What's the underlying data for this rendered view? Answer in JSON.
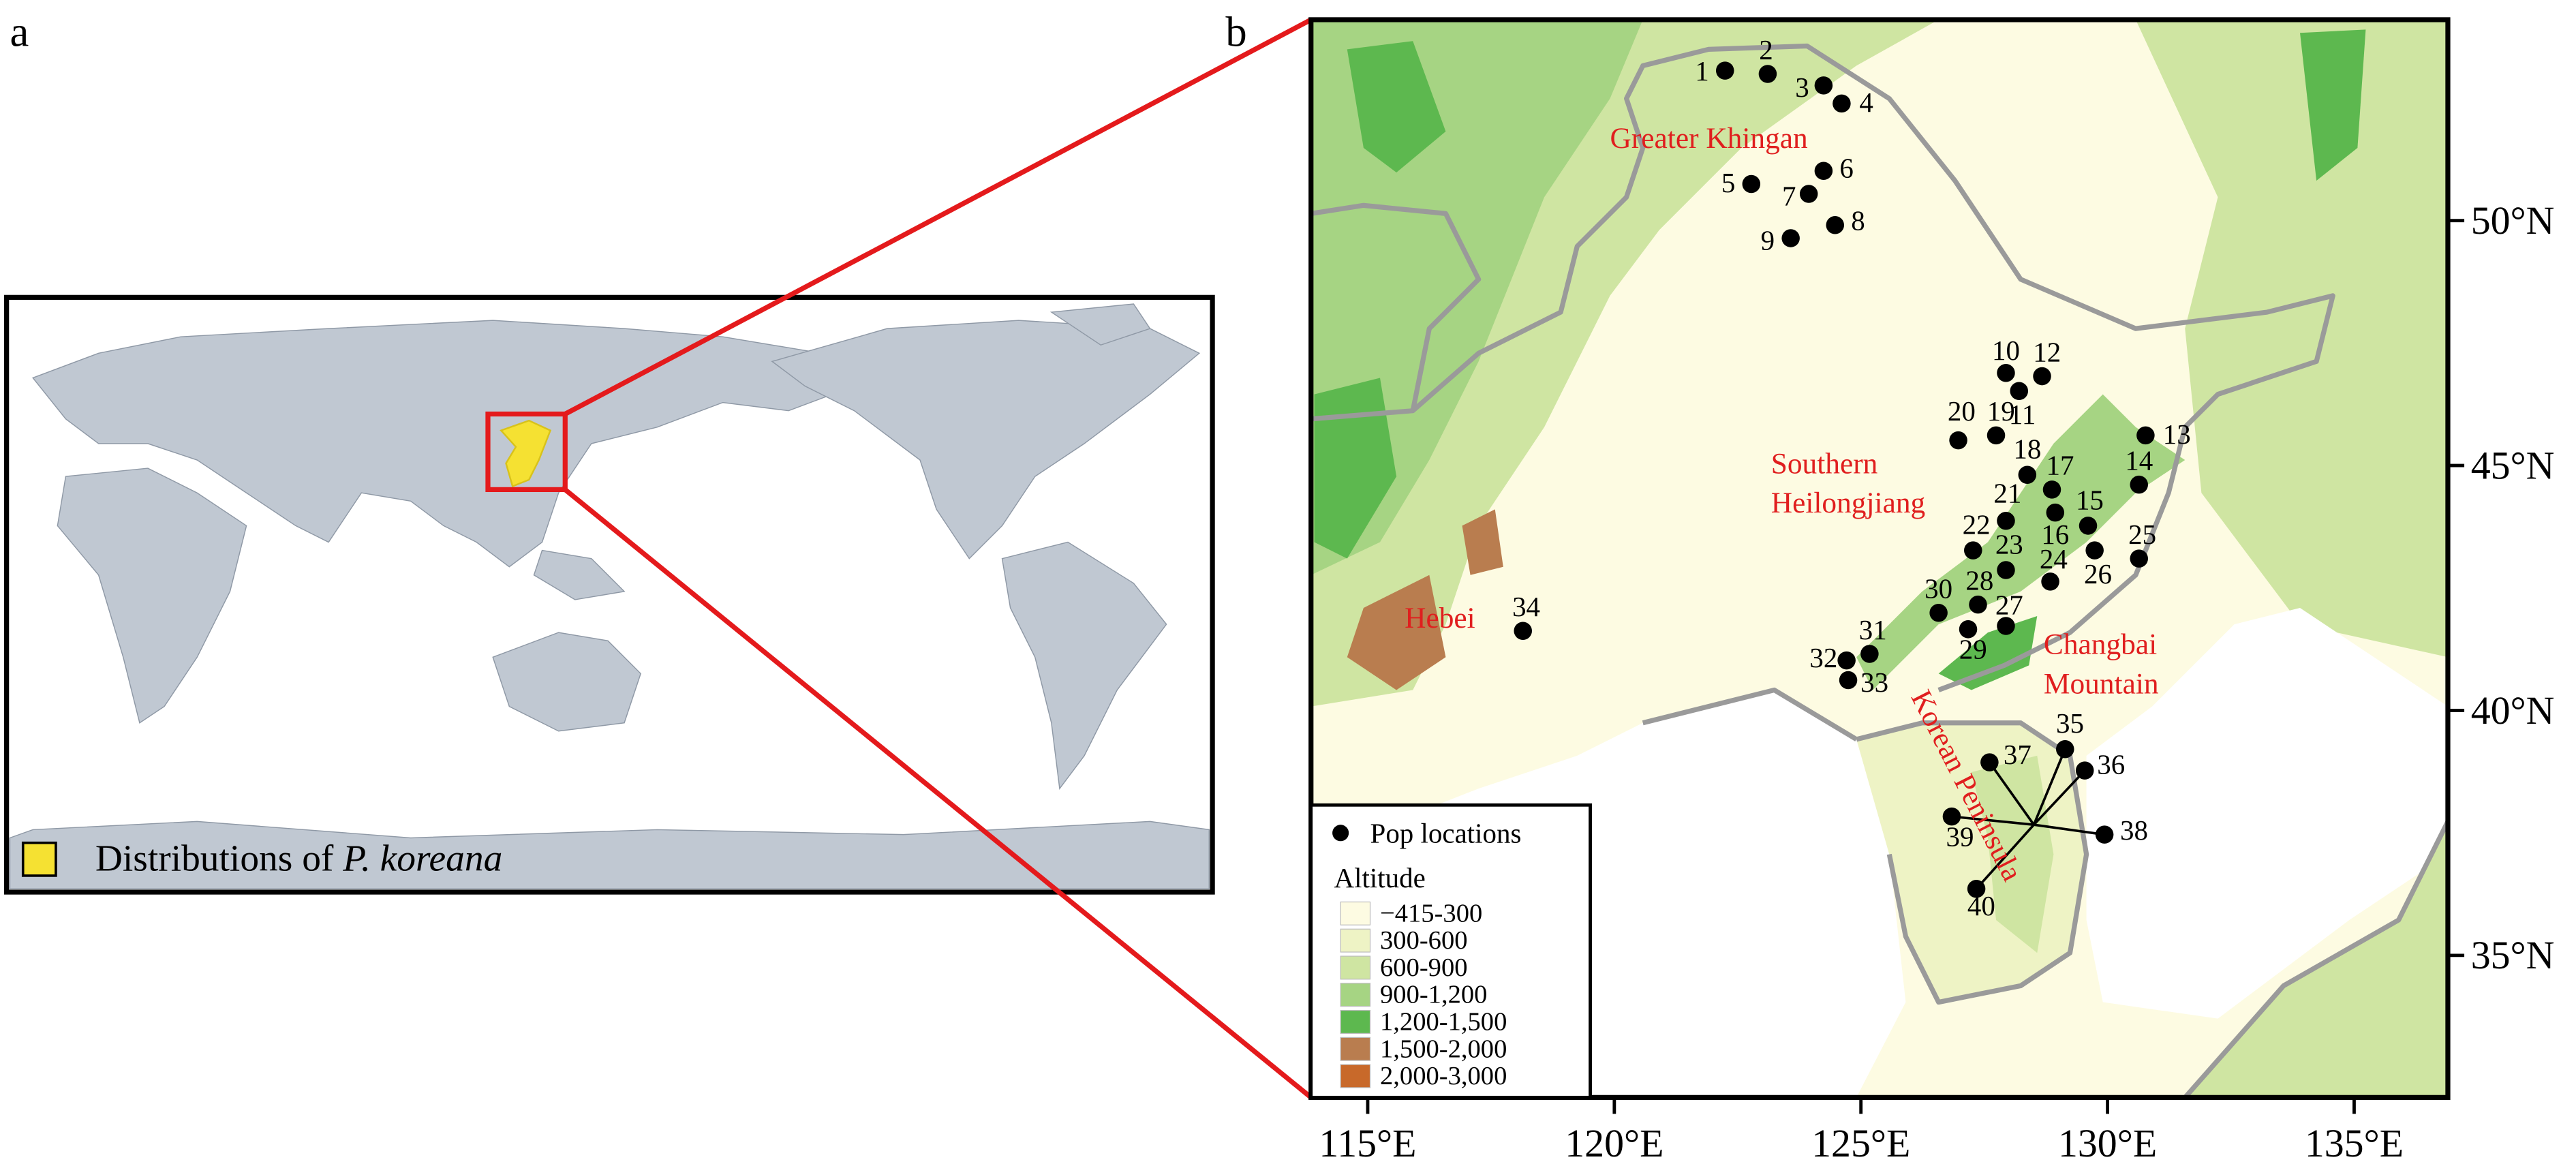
{
  "panel_labels": [
    "a",
    "b"
  ],
  "panel_a": {
    "legend": {
      "text": "Distributions of ",
      "italic": "P. koreana",
      "color": "#f5e132"
    }
  },
  "panel_b": {
    "regions": [
      {
        "lines": [
          "Greater Khingan"
        ]
      },
      {
        "lines": [
          "Southern",
          "Heilongjiang"
        ]
      },
      {
        "lines": [
          "Hebei"
        ]
      },
      {
        "lines": [
          "Changbai",
          "Mountain"
        ]
      },
      {
        "lines": [
          "Korean Peninsula"
        ]
      }
    ],
    "region_color": "#e01e1e",
    "populations": [
      "1",
      "2",
      "3",
      "4",
      "5",
      "6",
      "7",
      "8",
      "9",
      "10",
      "11",
      "12",
      "13",
      "14",
      "15",
      "16",
      "17",
      "18",
      "19",
      "20",
      "21",
      "22",
      "23",
      "24",
      "25",
      "26",
      "27",
      "28",
      "29",
      "30",
      "31",
      "32",
      "33",
      "34",
      "35",
      "36",
      "37",
      "38",
      "39",
      "40"
    ],
    "legend": {
      "points": "Pop locations",
      "title": "Altitude",
      "items": [
        {
          "label": "−415-300",
          "color": "#fdfbe2"
        },
        {
          "label": "300-600",
          "color": "#eef3c5"
        },
        {
          "label": "600-900",
          "color": "#cfe5a2"
        },
        {
          "label": "900-1,200",
          "color": "#a6d483"
        },
        {
          "label": "1,200-1,500",
          "color": "#5db84f"
        },
        {
          "label": "1,500-2,000",
          "color": "#b97d4f"
        },
        {
          "label": "2,000-3,000",
          "color": "#c8692a"
        }
      ]
    },
    "xlim": [
      113.85,
      136.9
    ],
    "ylim": [
      32.1,
      54.1
    ],
    "xticks": [
      {
        "value": 115,
        "label": "115°E"
      },
      {
        "value": 120,
        "label": "120°E"
      },
      {
        "value": 125,
        "label": "125°E"
      },
      {
        "value": 130,
        "label": "130°E"
      },
      {
        "value": 135,
        "label": "135°E"
      }
    ],
    "yticks": [
      {
        "value": 35,
        "label": "35°N"
      },
      {
        "value": 40,
        "label": "40°N"
      },
      {
        "value": 45,
        "label": "45°N"
      },
      {
        "value": 50,
        "label": "50°N"
      }
    ]
  }
}
